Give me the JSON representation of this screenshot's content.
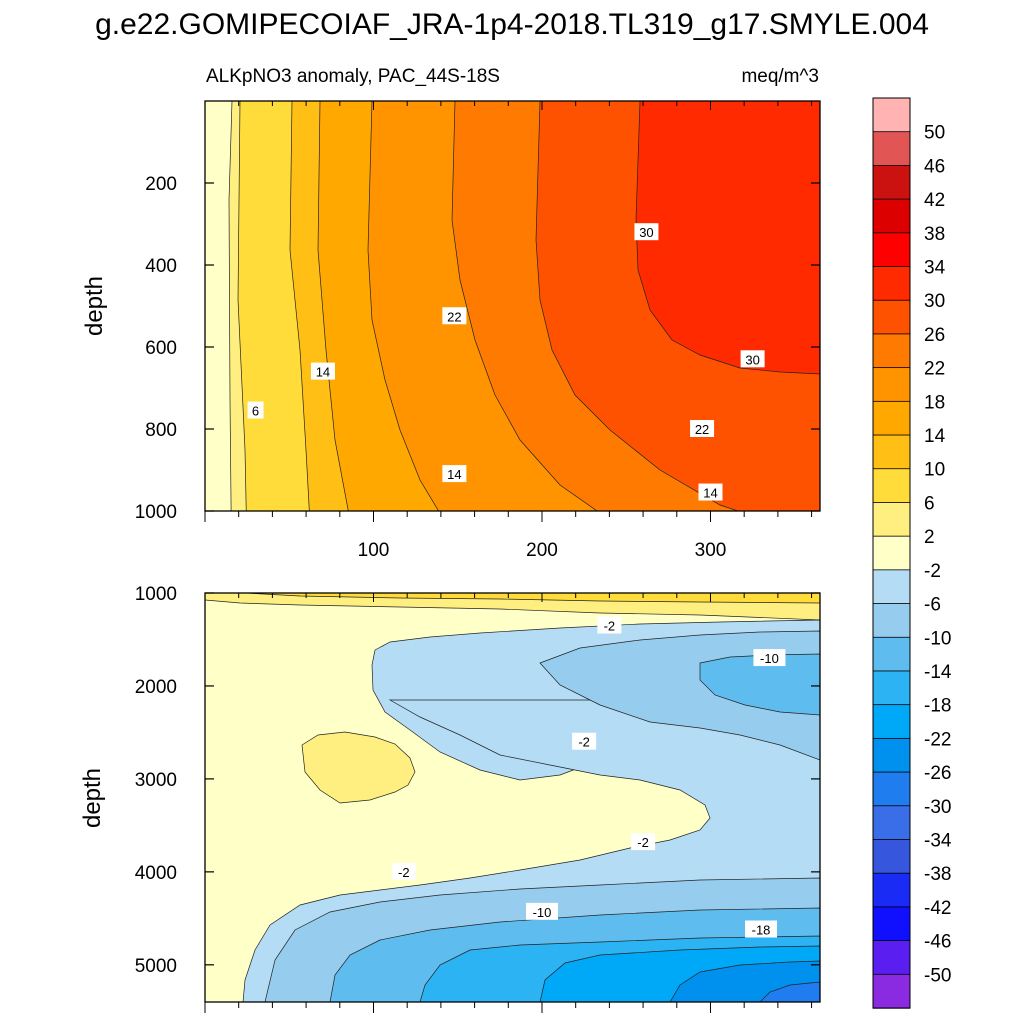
{
  "figure": {
    "title": "g.e22.GOMIPECOIAF_JRA-1p4-2018.TL319_g17.SMYLE.004",
    "panel_title_left": "ALKpNO3 anomaly, PAC_44S-18S",
    "panel_title_right": "meq/m^3"
  },
  "colors": {
    "frame": "#000000",
    "contour_line": "#222222",
    "label_box": "#ffffff"
  },
  "chart_data": [
    {
      "type": "heatmap",
      "subtype": "filled-contour",
      "panel": "upper",
      "title": "ALKpNO3 anomaly, PAC_44S-18S",
      "units": "meq/m^3",
      "ylabel": "depth",
      "xlabel": "",
      "xlim": [
        0,
        365
      ],
      "ylim": [
        0,
        1000
      ],
      "y_reversed": true,
      "x_ticks": [
        100,
        200,
        300
      ],
      "y_ticks": [
        200,
        400,
        600,
        800,
        1000
      ],
      "contour_labels": [
        {
          "text": "6",
          "x": 30,
          "y": 755
        },
        {
          "text": "14",
          "x": 70,
          "y": 660
        },
        {
          "text": "22",
          "x": 148,
          "y": 525
        },
        {
          "text": "30",
          "x": 262,
          "y": 320
        },
        {
          "text": "30",
          "x": 325,
          "y": 630
        },
        {
          "text": "22",
          "x": 295,
          "y": 800
        },
        {
          "text": "14",
          "x": 148,
          "y": 910
        },
        {
          "text": "14",
          "x": 300,
          "y": 955
        }
      ],
      "grid": false
    },
    {
      "type": "heatmap",
      "subtype": "filled-contour",
      "panel": "lower",
      "ylabel": "depth",
      "xlabel": "",
      "xlim": [
        0,
        365
      ],
      "ylim": [
        1000,
        5400
      ],
      "y_reversed": true,
      "x_ticks": [],
      "y_ticks": [
        1000,
        2000,
        3000,
        4000,
        5000
      ],
      "contour_labels": [
        {
          "text": "-2",
          "x": 240,
          "y": 1350
        },
        {
          "text": "-10",
          "x": 335,
          "y": 1700
        },
        {
          "text": "-2",
          "x": 225,
          "y": 2600
        },
        {
          "text": "-2",
          "x": 260,
          "y": 3680
        },
        {
          "text": "-2",
          "x": 118,
          "y": 4000
        },
        {
          "text": "-10",
          "x": 200,
          "y": 4430
        },
        {
          "text": "-18",
          "x": 330,
          "y": 4620
        }
      ],
      "grid": false
    }
  ],
  "colorbar": {
    "labels": [
      "50",
      "46",
      "42",
      "38",
      "34",
      "30",
      "26",
      "22",
      "18",
      "14",
      "10",
      "6",
      "2",
      "-2",
      "-6",
      "-10",
      "-14",
      "-18",
      "-22",
      "-26",
      "-30",
      "-34",
      "-38",
      "-42",
      "-46",
      "-50"
    ],
    "colors_top_to_bottom": [
      "#ffb3b3",
      "#e25555",
      "#cc1111",
      "#dd0000",
      "#ff0000",
      "#ff2a00",
      "#ff5200",
      "#ff7a00",
      "#ff9400",
      "#ffa800",
      "#ffbf14",
      "#ffdc3a",
      "#ffef80",
      "#ffffc8",
      "#b4dcf5",
      "#96ccee",
      "#5fbcef",
      "#2bb3f3",
      "#00a8f8",
      "#0090ee",
      "#1f7df0",
      "#3a6ee8",
      "#3556dd",
      "#1a2bf5",
      "#1010ff",
      "#5a1ef0",
      "#8a2be2"
    ]
  }
}
